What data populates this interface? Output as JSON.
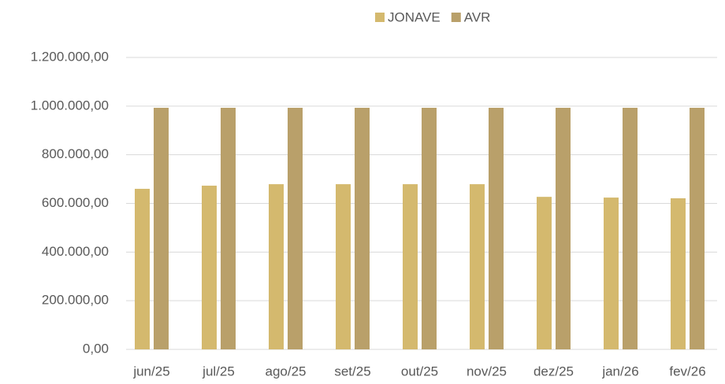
{
  "chart_data": {
    "type": "bar",
    "categories": [
      "jun/25",
      "jul/25",
      "ago/25",
      "set/25",
      "out/25",
      "nov/25",
      "dez/25",
      "jan/26",
      "fev/26"
    ],
    "series": [
      {
        "name": "JONAVE",
        "color": "#d4b96e",
        "values": [
          660000,
          673000,
          679000,
          679000,
          679000,
          679000,
          627000,
          624000,
          621000
        ]
      },
      {
        "name": "AVR",
        "color": "#b9a06a",
        "values": [
          993000,
          993000,
          993000,
          993000,
          993000,
          993000,
          993000,
          993000,
          993000
        ]
      }
    ],
    "ylim": [
      0,
      1200000
    ],
    "yticks": [
      {
        "value": 0,
        "label": "0,00"
      },
      {
        "value": 200000,
        "label": "200.000,00"
      },
      {
        "value": 400000,
        "label": "400.000,00"
      },
      {
        "value": 600000,
        "label": "600.000,00"
      },
      {
        "value": 800000,
        "label": "800.000,00"
      },
      {
        "value": 1000000,
        "label": "1.000.000,00"
      },
      {
        "value": 1200000,
        "label": "1.200.000,00"
      }
    ],
    "grid": true,
    "legend": "top"
  }
}
